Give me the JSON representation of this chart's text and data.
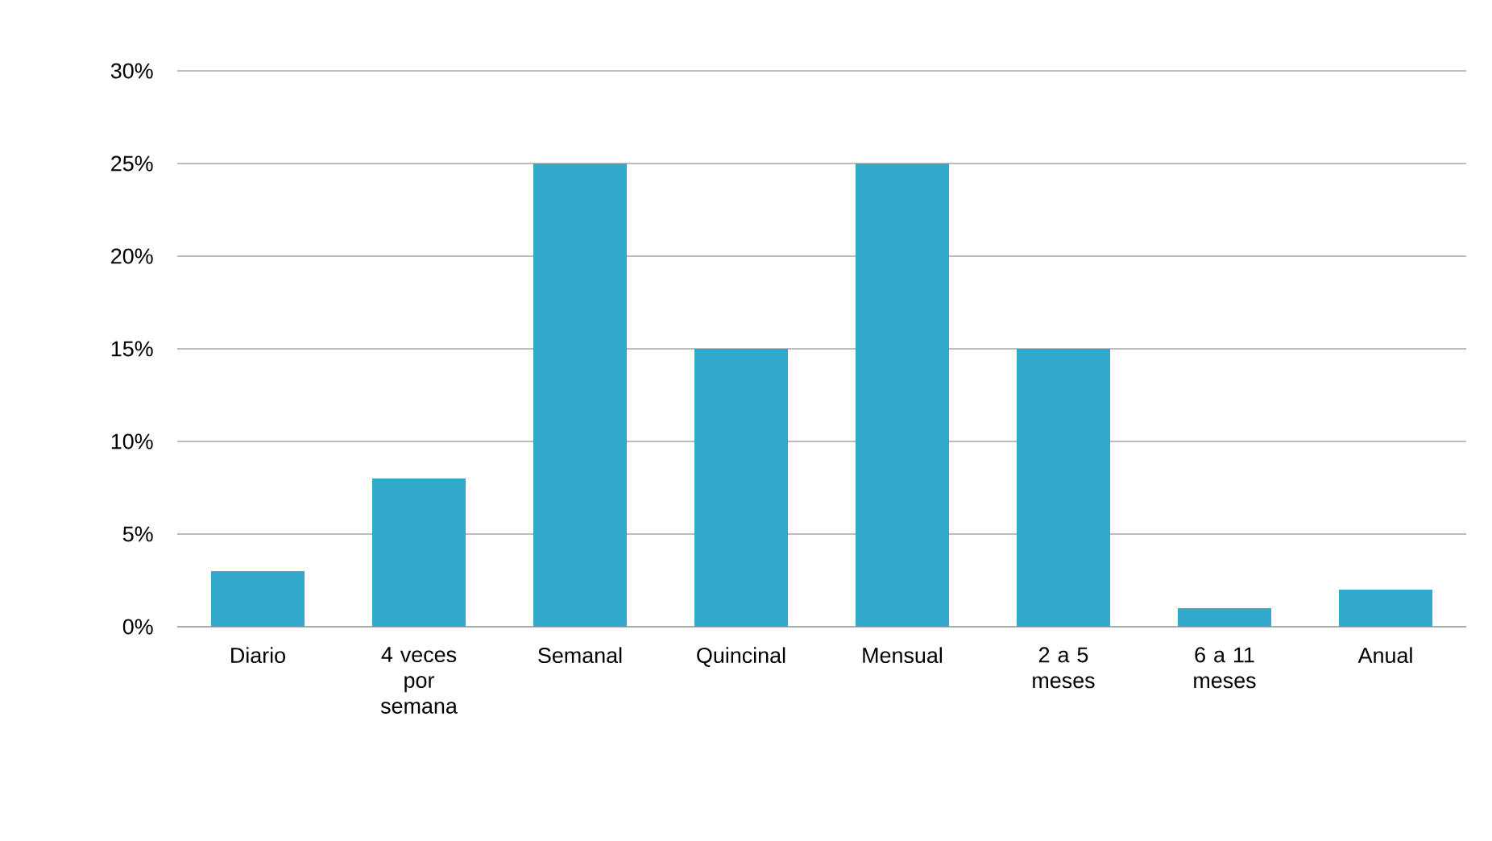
{
  "chart_data": {
    "type": "bar",
    "categories": [
      "Diario",
      "4 veces por semana",
      "Semanal",
      "Quincinal",
      "Mensual",
      "2 a 5 meses",
      "6 a 11 meses",
      "Anual"
    ],
    "values": [
      3,
      8,
      25,
      15,
      25,
      15,
      1,
      2
    ],
    "color": "#31a8cc",
    "ylim": [
      0,
      30
    ],
    "yticks": [
      {
        "value": 0,
        "label": "0%"
      },
      {
        "value": 5,
        "label": "5%"
      },
      {
        "value": 10,
        "label": "10%"
      },
      {
        "value": 15,
        "label": "15%"
      },
      {
        "value": 20,
        "label": "20%"
      },
      {
        "value": 25,
        "label": "25%"
      },
      {
        "value": 30,
        "label": "30%"
      }
    ],
    "grid": "y"
  }
}
